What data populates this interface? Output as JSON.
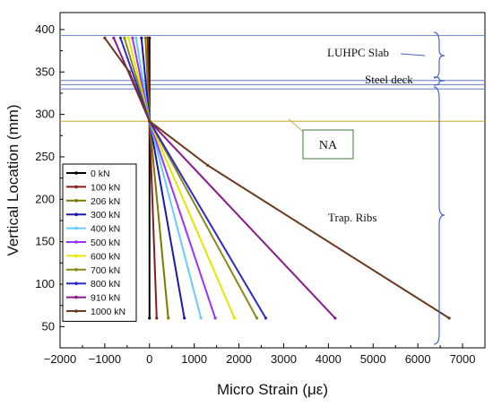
{
  "chart_data": {
    "type": "line",
    "xlabel": "Micro Strain (με)",
    "ylabel": "Vertical Location (mm)",
    "xlim": [
      -2000,
      7500
    ],
    "ylim": [
      25,
      420
    ],
    "xticks": [
      -2000,
      -1000,
      0,
      1000,
      2000,
      3000,
      4000,
      5000,
      6000,
      7000
    ],
    "yticks": [
      50,
      100,
      150,
      200,
      250,
      300,
      350,
      400
    ],
    "x_tick_labels": [
      "−2000",
      "−1000",
      "0",
      "1000",
      "2000",
      "3000",
      "4000",
      "5000",
      "6000",
      "7000"
    ],
    "y_tick_labels": [
      "50",
      "100",
      "150",
      "200",
      "250",
      "300",
      "350",
      "400"
    ],
    "grid": false,
    "legend_position": "bottom-left",
    "neutral_axis_y": 292,
    "layer_lines": [
      {
        "y": 393,
        "color": "#8090cc"
      },
      {
        "y": 340,
        "color": "#8090cc"
      },
      {
        "y": 335,
        "color": "#8090cc"
      },
      {
        "y": 330,
        "color": "#8090cc"
      }
    ],
    "series": [
      {
        "name": "0 kN",
        "color": "#000000",
        "points": [
          [
            0,
            390
          ],
          [
            0,
            292
          ],
          [
            0,
            60
          ]
        ]
      },
      {
        "name": "100 kN",
        "color": "#8b1a1a",
        "points": [
          [
            -40,
            390
          ],
          [
            0,
            292
          ],
          [
            160,
            60
          ]
        ]
      },
      {
        "name": "206 kN",
        "color": "#7a7a00",
        "points": [
          [
            -90,
            390
          ],
          [
            0,
            292
          ],
          [
            420,
            60
          ]
        ]
      },
      {
        "name": "300 kN",
        "color": "#1a1ab0",
        "points": [
          [
            -180,
            390
          ],
          [
            0,
            292
          ],
          [
            780,
            60
          ]
        ]
      },
      {
        "name": "400 kN",
        "color": "#66ccff",
        "points": [
          [
            -300,
            390
          ],
          [
            0,
            292
          ],
          [
            1150,
            60
          ]
        ]
      },
      {
        "name": "500 kN",
        "color": "#9933ff",
        "points": [
          [
            -380,
            390
          ],
          [
            0,
            292
          ],
          [
            1470,
            60
          ]
        ]
      },
      {
        "name": "600 kN",
        "color": "#e6e600",
        "points": [
          [
            -470,
            390
          ],
          [
            0,
            292
          ],
          [
            1900,
            60
          ]
        ]
      },
      {
        "name": "700 kN",
        "color": "#8a8a1a",
        "points": [
          [
            -560,
            390
          ],
          [
            0,
            292
          ],
          [
            2400,
            60
          ]
        ]
      },
      {
        "name": "800 kN",
        "color": "#2a2acc",
        "points": [
          [
            -650,
            390
          ],
          [
            0,
            292
          ],
          [
            2600,
            60
          ]
        ]
      },
      {
        "name": "910 kN",
        "color": "#8a1a8a",
        "points": [
          [
            -800,
            390
          ],
          [
            0,
            292
          ],
          [
            4150,
            60
          ]
        ]
      },
      {
        "name": "1000 kN",
        "color": "#6b3a1f",
        "points": [
          [
            -1000,
            390
          ],
          [
            -450,
            350
          ],
          [
            0,
            292
          ],
          [
            1300,
            240
          ],
          [
            6700,
            60
          ]
        ]
      }
    ],
    "annotations": {
      "slab": "LUHPC Slab",
      "deck": "Steel deck",
      "na": "NA",
      "ribs": "Trap. Ribs"
    }
  }
}
